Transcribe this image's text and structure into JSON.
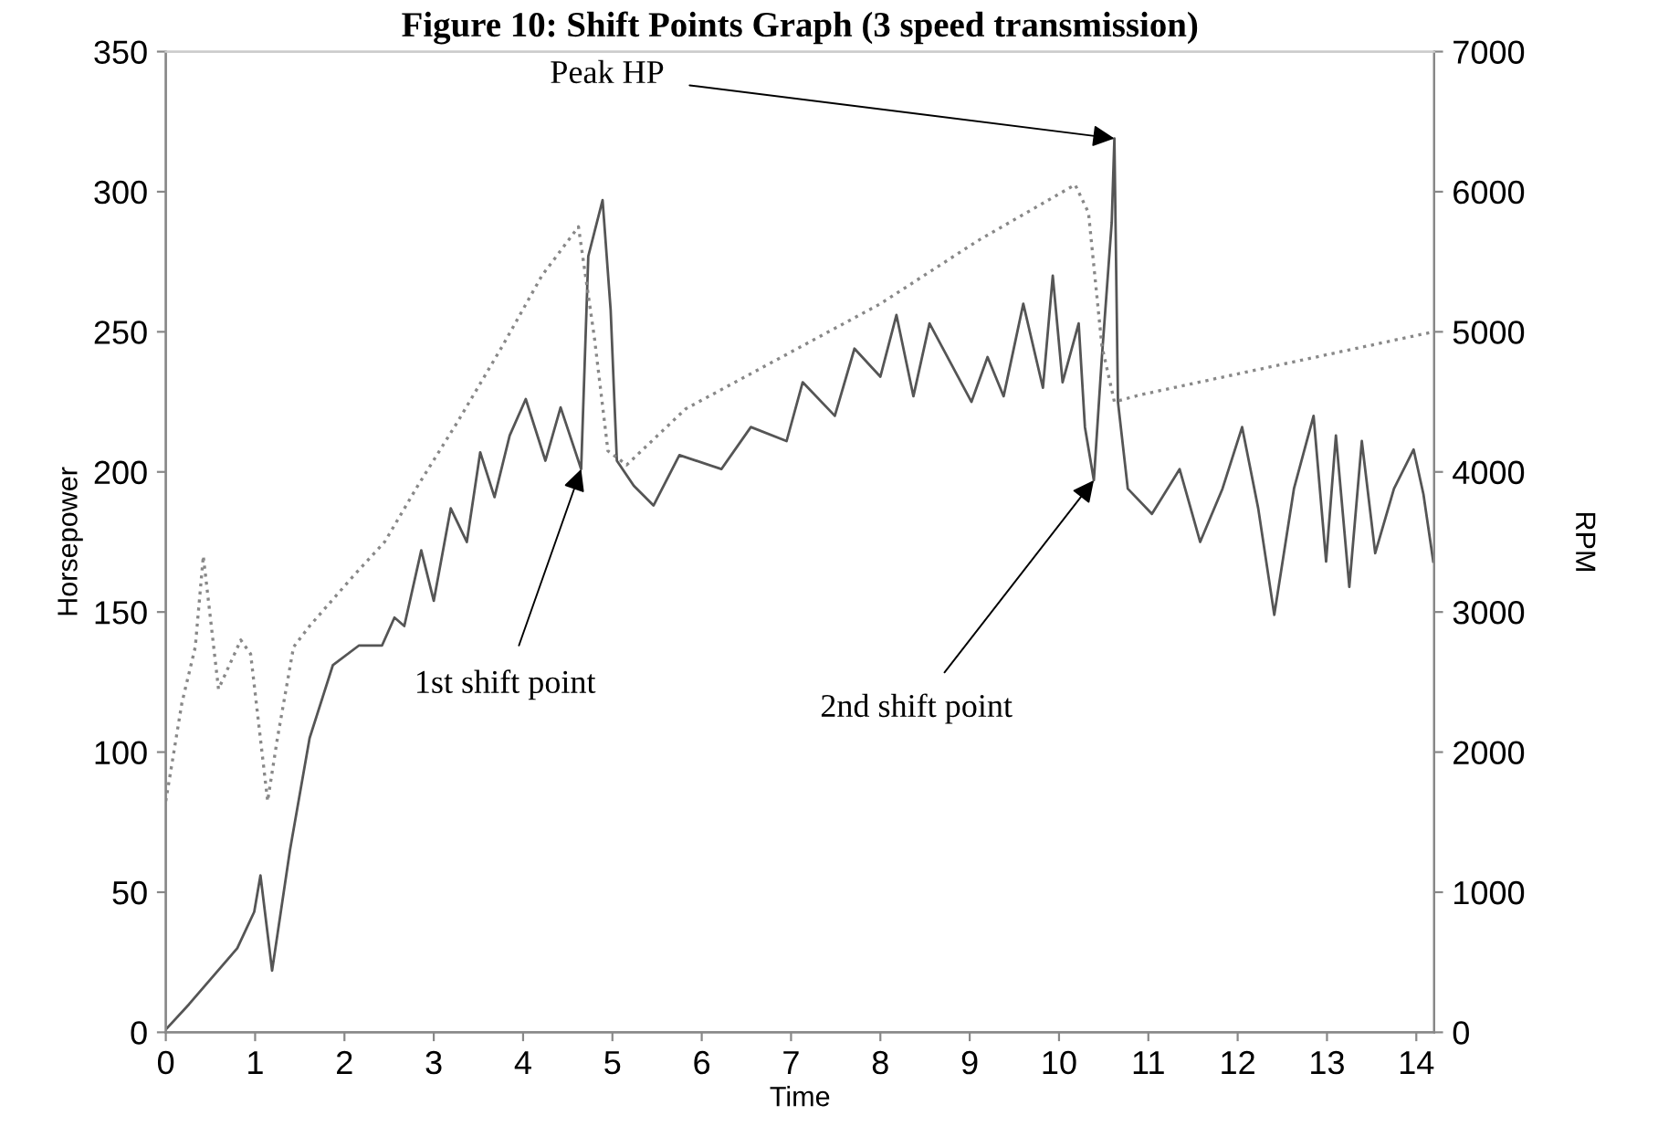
{
  "chart_data": {
    "type": "line",
    "title": "Figure 10: Shift Points Graph (3 speed transmission)",
    "xlabel": "Time",
    "ylabel": "Horsepower",
    "y2label": "RPM",
    "xlim": [
      0,
      14.2
    ],
    "xticks": [
      0,
      1,
      2,
      3,
      4,
      5,
      6,
      7,
      8,
      9,
      10,
      11,
      12,
      13,
      14
    ],
    "ylim": [
      0,
      350
    ],
    "yticks": [
      0,
      50,
      100,
      150,
      200,
      250,
      300,
      350
    ],
    "y2lim": [
      0,
      7000
    ],
    "y2ticks": [
      0,
      1000,
      2000,
      3000,
      4000,
      5000,
      6000,
      7000
    ],
    "grid": false,
    "legend": false,
    "marker": "none",
    "series": [
      {
        "color": "#555555",
        "line_style": "solid",
        "x": [
          0,
          0.26,
          0.8,
          0.99,
          1.06,
          1.19,
          1.39,
          1.61,
          1.87,
          2.16,
          2.42,
          2.56,
          2.67,
          2.86,
          3.0,
          3.19,
          3.37,
          3.52,
          3.68,
          3.85,
          4.03,
          4.25,
          4.42,
          4.65,
          4.73,
          4.89,
          4.98,
          5.05,
          5.24,
          5.46,
          5.75,
          6.22,
          6.55,
          6.95,
          7.13,
          7.49,
          7.71,
          8.0,
          8.18,
          8.37,
          8.55,
          9.02,
          9.2,
          9.38,
          9.6,
          9.82,
          9.93,
          10.04,
          10.22,
          10.29,
          10.39,
          10.48,
          10.59,
          10.62,
          10.66,
          10.77,
          11.04,
          11.35,
          11.58,
          11.83,
          12.05,
          12.23,
          12.41,
          12.63,
          12.85,
          12.99,
          13.1,
          13.25,
          13.39,
          13.54,
          13.75,
          13.97,
          14.08,
          14.19
        ],
        "values": [
          1,
          10,
          30,
          43,
          56,
          22,
          65,
          105,
          131,
          138,
          138,
          148,
          145,
          172,
          154,
          187,
          175,
          207,
          191,
          213,
          226,
          204,
          223,
          201,
          277,
          297,
          258,
          204,
          195,
          188,
          206,
          201,
          216,
          211,
          232,
          220,
          244,
          234,
          256,
          227,
          253,
          225,
          241,
          227,
          260,
          230,
          270,
          232,
          253,
          216,
          197,
          241,
          289,
          319,
          225,
          194,
          185,
          201,
          175,
          194,
          216,
          187,
          149,
          194,
          220,
          168,
          213,
          159,
          211,
          171,
          194,
          208,
          192,
          168
        ]
      },
      {
        "color": "#888888",
        "line_style": "dotted",
        "axis": "y2",
        "x": [
          0,
          0.18,
          0.33,
          0.42,
          0.59,
          0.84,
          0.95,
          1.14,
          1.25,
          1.43,
          1.61,
          2.09,
          2.45,
          2.82,
          3.26,
          3.77,
          4.21,
          4.62,
          4.8,
          4.95,
          5.16,
          5.82,
          8.0,
          9.09,
          10.18,
          10.33,
          10.48,
          10.62,
          10.91,
          14.19
        ],
        "values": [
          1650,
          2350,
          2750,
          3400,
          2450,
          2800,
          2700,
          1650,
          2100,
          2750,
          2900,
          3250,
          3500,
          3900,
          4350,
          4900,
          5400,
          5750,
          4950,
          4150,
          4050,
          4450,
          5200,
          5650,
          6050,
          5850,
          4900,
          4500,
          4550,
          5000
        ]
      }
    ],
    "annotations": [
      {
        "text": "1st shift point",
        "x": 4.65,
        "y": 201
      },
      {
        "text": "2nd shift point",
        "x": 10.39,
        "y": 197
      },
      {
        "text": "Peak HP",
        "x": 10.62,
        "y": 319
      }
    ]
  }
}
